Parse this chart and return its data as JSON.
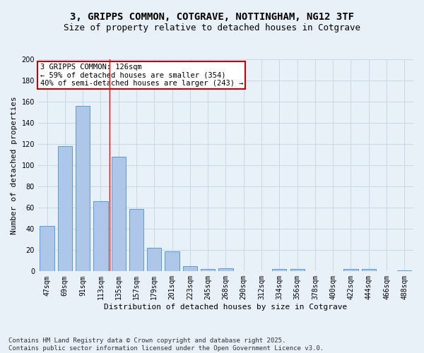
{
  "title_line1": "3, GRIPPS COMMON, COTGRAVE, NOTTINGHAM, NG12 3TF",
  "title_line2": "Size of property relative to detached houses in Cotgrave",
  "xlabel": "Distribution of detached houses by size in Cotgrave",
  "ylabel": "Number of detached properties",
  "categories": [
    "47sqm",
    "69sqm",
    "91sqm",
    "113sqm",
    "135sqm",
    "157sqm",
    "179sqm",
    "201sqm",
    "223sqm",
    "245sqm",
    "268sqm",
    "290sqm",
    "312sqm",
    "334sqm",
    "356sqm",
    "378sqm",
    "400sqm",
    "422sqm",
    "444sqm",
    "466sqm",
    "488sqm"
  ],
  "values": [
    43,
    118,
    156,
    66,
    108,
    59,
    22,
    19,
    5,
    2,
    3,
    0,
    0,
    2,
    2,
    0,
    0,
    2,
    2,
    0,
    1
  ],
  "bar_color": "#aec6e8",
  "bar_edge_color": "#5b9bd5",
  "grid_color": "#c8d8e8",
  "bg_color": "#e8f0f8",
  "red_line_x": 3.5,
  "annotation_title": "3 GRIPPS COMMON: 126sqm",
  "annotation_line2": "← 59% of detached houses are smaller (354)",
  "annotation_line3": "40% of semi-detached houses are larger (243) →",
  "annotation_box_color": "#ffffff",
  "annotation_edge_color": "#cc0000",
  "footer_line1": "Contains HM Land Registry data © Crown copyright and database right 2025.",
  "footer_line2": "Contains public sector information licensed under the Open Government Licence v3.0.",
  "ylim": [
    0,
    200
  ],
  "yticks": [
    0,
    20,
    40,
    60,
    80,
    100,
    120,
    140,
    160,
    180,
    200
  ],
  "title_fontsize": 10,
  "subtitle_fontsize": 9,
  "axis_label_fontsize": 8,
  "tick_fontsize": 7,
  "annotation_fontsize": 7.5,
  "footer_fontsize": 6.5
}
